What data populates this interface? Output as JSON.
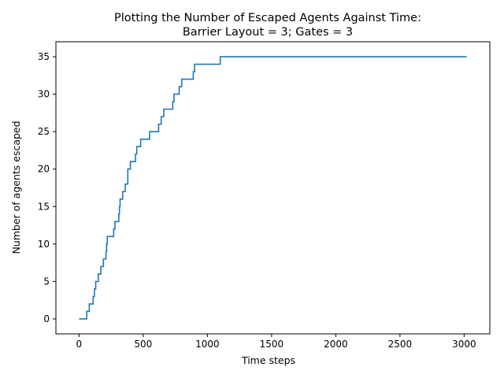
{
  "chart_data": {
    "type": "line",
    "title_line1": "Plotting the Number of Escaped Agents Against Time:",
    "title_line2": "Barrier Layout = 3; Gates = 3",
    "xlabel": "Time steps",
    "ylabel": "Number of agents escaped",
    "xlim": [
      -180,
      3200
    ],
    "ylim": [
      -2,
      37
    ],
    "x_ticks": [
      0,
      500,
      1000,
      1500,
      2000,
      2500,
      3000
    ],
    "y_ticks": [
      0,
      5,
      10,
      15,
      20,
      25,
      30,
      35
    ],
    "x_tick_labels": [
      "0",
      "500",
      "1000",
      "1500",
      "2000",
      "2500",
      "3000"
    ],
    "y_tick_labels": [
      "0",
      "5",
      "10",
      "15",
      "20",
      "25",
      "30",
      "35"
    ],
    "line_color": "#1f77b4",
    "step": "post",
    "series": [
      {
        "x": [
          0,
          60,
          70,
          80,
          100,
          110,
          120,
          130,
          150,
          170,
          190,
          210,
          215,
          220,
          230,
          270,
          280,
          300,
          310,
          315,
          320,
          330,
          340,
          360,
          380,
          400,
          420,
          440,
          450,
          460,
          480,
          550,
          620,
          640,
          660,
          700,
          730,
          740,
          760,
          780,
          800,
          820,
          890,
          900,
          1000,
          1100,
          3020
        ],
        "y": [
          0,
          1,
          1,
          2,
          2,
          3,
          4,
          5,
          6,
          7,
          8,
          9,
          10,
          11,
          11,
          12,
          13,
          13,
          14,
          15,
          16,
          16,
          17,
          18,
          20,
          21,
          21,
          22,
          23,
          23,
          24,
          25,
          26,
          27,
          28,
          28,
          29,
          30,
          30,
          31,
          32,
          32,
          33,
          34,
          34,
          35,
          35
        ]
      }
    ]
  }
}
